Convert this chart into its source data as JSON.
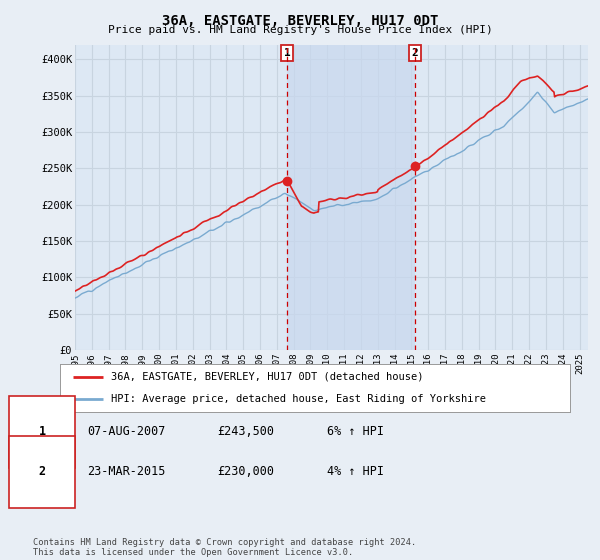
{
  "title": "36A, EASTGATE, BEVERLEY, HU17 0DT",
  "subtitle": "Price paid vs. HM Land Registry's House Price Index (HPI)",
  "ylim": [
    0,
    400000
  ],
  "xlim_start": 1995,
  "xlim_end": 2025.5,
  "background_color": "#e8eef5",
  "plot_bg_color": "#dde8f4",
  "grid_color": "#c8d4e0",
  "shade_color": "#c8d8ee",
  "red_line_color": "#dd2222",
  "blue_line_color": "#7aaad0",
  "marker1_x": 2007.6,
  "marker1_y": 243500,
  "marker2_x": 2015.22,
  "marker2_y": 230000,
  "sale1_date": "07-AUG-2007",
  "sale1_price": "£243,500",
  "sale1_hpi": "6% ↑ HPI",
  "sale2_date": "23-MAR-2015",
  "sale2_price": "£230,000",
  "sale2_hpi": "4% ↑ HPI",
  "legend_line1": "36A, EASTGATE, BEVERLEY, HU17 0DT (detached house)",
  "legend_line2": "HPI: Average price, detached house, East Riding of Yorkshire",
  "footer": "Contains HM Land Registry data © Crown copyright and database right 2024.\nThis data is licensed under the Open Government Licence v3.0."
}
